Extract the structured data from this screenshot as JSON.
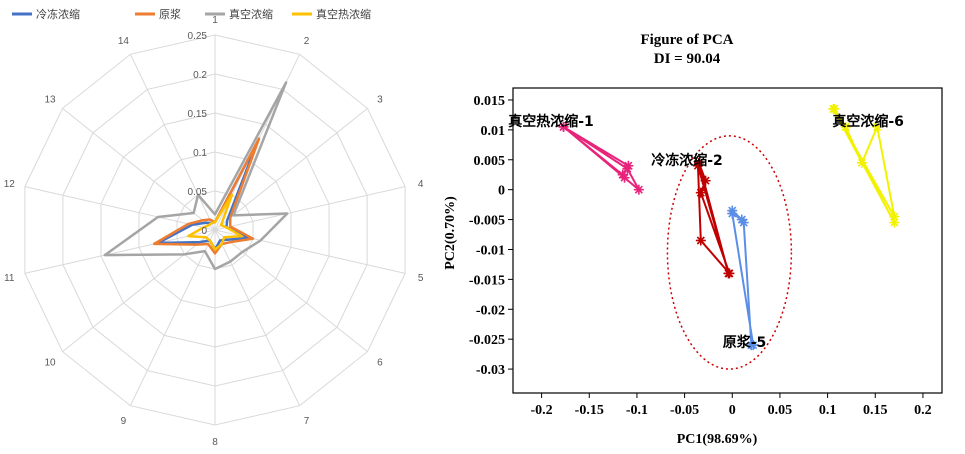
{
  "chart_data": [
    {
      "type": "radar",
      "categories": [
        "1",
        "2",
        "3",
        "4",
        "5",
        "6",
        "7",
        "8",
        "9",
        "10",
        "11",
        "12",
        "13",
        "14"
      ],
      "axis_ticks": [
        "0",
        "0.05",
        "0.1",
        "0.15",
        "0.2",
        "0.25"
      ],
      "rlim": [
        0,
        0.25
      ],
      "grid": true,
      "legend_position": "top-left",
      "series": [
        {
          "name": "冷冻浓缩",
          "color": "#4472C4",
          "values": [
            0.01,
            0.125,
            0.02,
            0.015,
            0.045,
            0.02,
            0.015,
            0.025,
            0.015,
            0.025,
            0.075,
            0.03,
            0.015,
            0.01
          ]
        },
        {
          "name": "原浆",
          "color": "#ED7D31",
          "values": [
            0.01,
            0.13,
            0.025,
            0.02,
            0.05,
            0.025,
            0.02,
            0.03,
            0.02,
            0.03,
            0.08,
            0.035,
            0.02,
            0.015
          ]
        },
        {
          "name": "真空浓缩",
          "color": "#A5A5A5",
          "values": [
            0.02,
            0.21,
            0.03,
            0.095,
            0.06,
            0.045,
            0.045,
            0.05,
            0.03,
            0.05,
            0.145,
            0.075,
            0.035,
            0.05
          ]
        },
        {
          "name": "真空热浓缩",
          "color": "#FFC000",
          "values": [
            0.01,
            0.05,
            0.01,
            0.015,
            0.035,
            0.015,
            0.02,
            0.025,
            0.015,
            0.015,
            0.035,
            0.015,
            0.01,
            0.01
          ]
        }
      ]
    },
    {
      "type": "scatter",
      "title": "Figure of PCA",
      "subtitle": "DI = 90.04",
      "xlabel": "PC1(98.69%)",
      "ylabel": "PC2(0.70%)",
      "xlim": [
        -0.23,
        0.22
      ],
      "ylim": [
        -0.034,
        0.017
      ],
      "xticks": [
        "-0.2",
        "-0.15",
        "-0.1",
        "-0.05",
        "0",
        "0.05",
        "0.1",
        "0.15",
        "0.2"
      ],
      "yticks": [
        "0.015",
        "0.01",
        "0.005",
        "0",
        "-0.005",
        "-0.01",
        "-0.015",
        "-0.02",
        "-0.025",
        "-0.03"
      ],
      "ellipse": {
        "cx": -0.003,
        "cy": -0.0105,
        "rx": 0.065,
        "ry": 0.0195,
        "color": "#CC0000",
        "style": "dotted"
      },
      "groups": [
        {
          "label": "真空热浓缩-1",
          "color": "#E8237A",
          "label_x": -0.235,
          "label_y": 0.0115,
          "points": [
            [
              -0.177,
              0.0105
            ],
            [
              -0.11,
              0.0035
            ],
            [
              -0.098,
              0.0
            ],
            [
              -0.113,
              0.002
            ],
            [
              -0.177,
              0.0105
            ],
            [
              -0.115,
              0.0025
            ],
            [
              -0.109,
              0.004
            ]
          ]
        },
        {
          "label": "冷冻浓缩-2",
          "color": "#C00000",
          "label_x": -0.085,
          "label_y": 0.005,
          "points": [
            [
              -0.035,
              0.0045
            ],
            [
              -0.028,
              0.0015
            ],
            [
              -0.033,
              -0.0005
            ],
            [
              -0.003,
              -0.014
            ],
            [
              -0.033,
              -0.0085
            ],
            [
              -0.036,
              0.004
            ],
            [
              -0.004,
              -0.014
            ]
          ]
        },
        {
          "label": "原浆-5",
          "color": "#5B8EE6",
          "label_x": -0.01,
          "label_y": -0.0255,
          "points": [
            [
              0.0,
              -0.0035
            ],
            [
              0.012,
              -0.0055
            ],
            [
              0.02,
              -0.026
            ],
            [
              0.022,
              -0.026
            ],
            [
              0.0,
              -0.004
            ],
            [
              0.01,
              -0.005
            ]
          ]
        },
        {
          "label": "真空浓缩-6",
          "color": "#F2F200",
          "label_x": 0.105,
          "label_y": 0.0115,
          "points": [
            [
              0.106,
              0.0135
            ],
            [
              0.17,
              -0.0045
            ],
            [
              0.152,
              0.0105
            ],
            [
              0.136,
              0.0045
            ],
            [
              0.119,
              0.0105
            ],
            [
              0.107,
              0.0135
            ],
            [
              0.17,
              -0.0055
            ]
          ]
        }
      ]
    }
  ]
}
